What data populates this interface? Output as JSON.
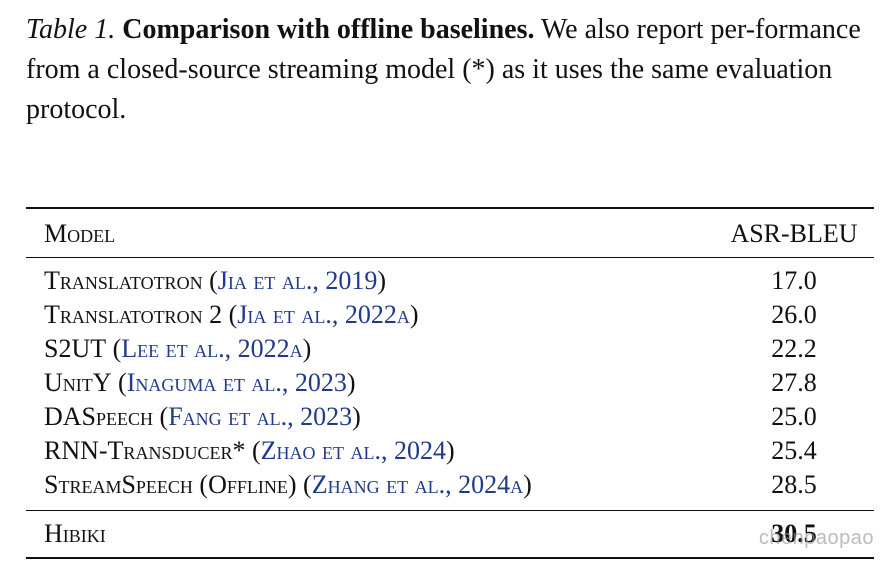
{
  "caption": {
    "label": "Table 1.",
    "title": "Comparison with offline baselines.",
    "text": "We also report per-formance from a closed-source streaming model (*) as it uses the same evaluation protocol."
  },
  "table": {
    "header": {
      "model": "Model",
      "score": "ASR-BLEU"
    },
    "rows": [
      {
        "model": "Translatotron",
        "citation": "Jia et al., 2019",
        "score": "17.0"
      },
      {
        "model": "Translatotron 2",
        "citation": "Jia et al., 2022a",
        "score": "26.0"
      },
      {
        "model": "S2UT",
        "citation": "Lee et al., 2022a",
        "score": "22.2"
      },
      {
        "model": "UnitY",
        "citation": "Inaguma et al., 2023",
        "score": "27.8"
      },
      {
        "model": "DASpeech",
        "citation": "Fang et al., 2023",
        "score": "25.0"
      },
      {
        "model": "RNN-Transducer*",
        "citation": "Zhao et al., 2024",
        "score": "25.4"
      },
      {
        "model": "StreamSpeech (Offline)",
        "citation": "Zhang et al., 2024a",
        "score": "28.5"
      }
    ],
    "final_row": {
      "model": "Hibiki",
      "score": "30.5"
    }
  },
  "watermark": "chenpaopao"
}
